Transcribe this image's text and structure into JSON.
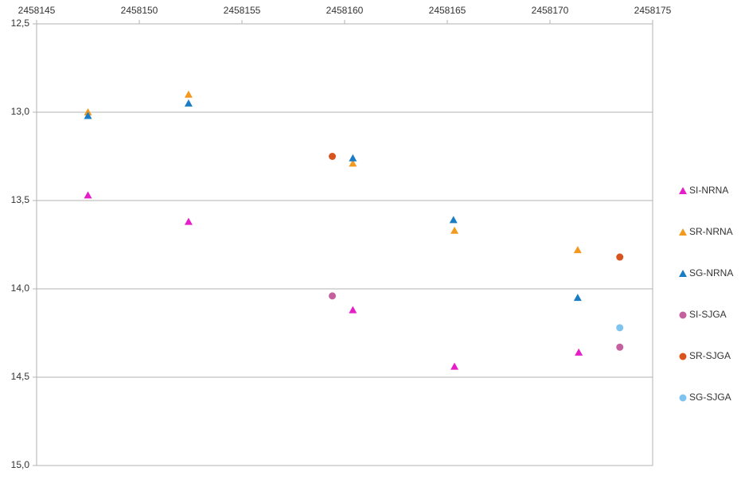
{
  "chart_data": {
    "type": "scatter",
    "xlim": [
      2458145,
      2458175
    ],
    "xticks": [
      2458145,
      2458150,
      2458155,
      2458160,
      2458165,
      2458170,
      2458175
    ],
    "ylim": [
      12.5,
      15.0
    ],
    "y_inverted": true,
    "yticks": [
      {
        "value": 12.5,
        "label": "12,5"
      },
      {
        "value": 13.0,
        "label": "13,0"
      },
      {
        "value": 13.5,
        "label": "13,5"
      },
      {
        "value": 14.0,
        "label": "14,0"
      },
      {
        "value": 14.5,
        "label": "14,5"
      },
      {
        "value": 15.0,
        "label": "15,0"
      }
    ],
    "grid": true,
    "legend": "right",
    "series": [
      {
        "name": "SI-NRNA",
        "color": "#e61ec8",
        "marker": "triangle",
        "x": [
          2458147.5,
          2458152.4,
          2458160.4,
          2458165.35,
          2458171.4
        ],
        "values": [
          13.47,
          13.62,
          14.12,
          14.44,
          14.36
        ]
      },
      {
        "name": "SR-NRNA",
        "color": "#f39a1e",
        "marker": "triangle",
        "x": [
          2458147.5,
          2458152.4,
          2458160.4,
          2458165.35,
          2458171.35
        ],
        "values": [
          13.0,
          12.9,
          13.29,
          13.67,
          13.78
        ]
      },
      {
        "name": "SG-NRNA",
        "color": "#1a7dc4",
        "marker": "triangle",
        "x": [
          2458147.5,
          2458152.4,
          2458160.4,
          2458165.3,
          2458171.35
        ],
        "values": [
          13.02,
          12.95,
          13.26,
          13.61,
          14.05
        ]
      },
      {
        "name": "SI-SJGA",
        "color": "#c4609e",
        "marker": "circle",
        "x": [
          2458159.4,
          2458173.4
        ],
        "values": [
          14.04,
          14.33
        ]
      },
      {
        "name": "SR-SJGA",
        "color": "#d8541e",
        "marker": "circle",
        "x": [
          2458159.4,
          2458173.4
        ],
        "values": [
          13.25,
          13.82
        ]
      },
      {
        "name": "SG-SJGA",
        "color": "#7fc4ef",
        "marker": "circle",
        "x": [
          2458173.4
        ],
        "values": [
          14.22
        ]
      }
    ]
  }
}
